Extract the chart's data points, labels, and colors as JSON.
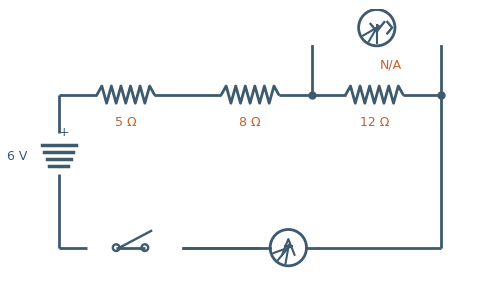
{
  "bg_color": "#ffffff",
  "line_color": "#3d5a6e",
  "resistor_color": "#3d5a6e",
  "label_color": "#c0622a",
  "voltmeter_label": "N/A",
  "battery_label": "6 V",
  "battery_plus": "+",
  "res1_label": "5 Ω",
  "res2_label": "8 Ω",
  "res3_label": "12 Ω",
  "line_width": 2.0,
  "figsize": [
    4.81,
    3.04
  ],
  "dpi": 100,
  "xlim": [
    0,
    10
  ],
  "ylim": [
    0,
    6
  ]
}
